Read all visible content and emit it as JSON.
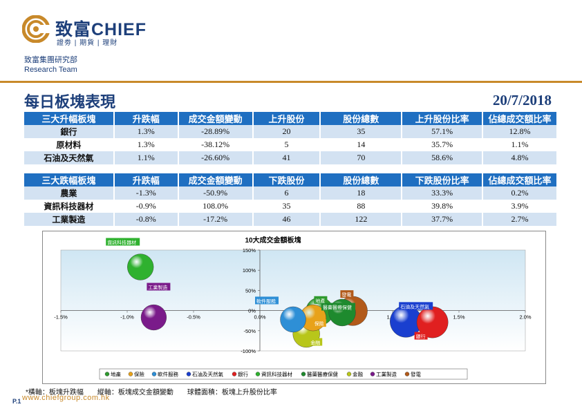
{
  "header": {
    "logo_name": "致富CHIEF",
    "logo_tagline": "證劵 | 期貨 | 理財",
    "dept_cn": "致富集團研究部",
    "dept_en": "Research Team"
  },
  "report": {
    "title": "每日板塊表現",
    "date": "20/7/2018"
  },
  "colors": {
    "brand_navy": "#1d3f7a",
    "accent_gold": "#c8892a",
    "table_header": "#1f6fc1",
    "row_band": "#d3e2f2"
  },
  "top_gainers": {
    "headers": [
      "三大升幅板塊",
      "升跌幅",
      "成交金額變動",
      "上升股份",
      "股份總數",
      "上升股份比率",
      "佔總成交額比率"
    ],
    "rows": [
      [
        "銀行",
        "1.3%",
        "-28.89%",
        "20",
        "35",
        "57.1%",
        "12.8%"
      ],
      [
        "原材料",
        "1.3%",
        "-38.12%",
        "5",
        "14",
        "35.7%",
        "1.1%"
      ],
      [
        "石油及天然氣",
        "1.1%",
        "-26.60%",
        "41",
        "70",
        "58.6%",
        "4.8%"
      ]
    ]
  },
  "top_losers": {
    "headers": [
      "三大跌幅板塊",
      "升跌幅",
      "成交金額變動",
      "下跌股份",
      "股份總數",
      "下跌股份比率",
      "佔總成交額比率"
    ],
    "rows": [
      [
        "農業",
        "-1.3%",
        "-50.9%",
        "6",
        "18",
        "33.3%",
        "0.2%"
      ],
      [
        "資訊科技器材",
        "-0.9%",
        "108.0%",
        "35",
        "88",
        "39.8%",
        "3.9%"
      ],
      [
        "工業製造",
        "-0.8%",
        "-17.2%",
        "46",
        "122",
        "37.7%",
        "2.7%"
      ]
    ]
  },
  "chart_data": {
    "type": "scatter",
    "title": "10大成交金額板塊",
    "xlim": [
      -1.5,
      2.0
    ],
    "ylim": [
      -100,
      150
    ],
    "x_ticks": [
      "-1.5%",
      "-1.0%",
      "-0.5%",
      "0.0%",
      "0.5%",
      "1.0%",
      "1.5%",
      "2.0%"
    ],
    "y_ticks": [
      "150%",
      "100%",
      "50%",
      "0%",
      "-50%",
      "-100%"
    ],
    "series": [
      {
        "name": "地產",
        "x": 0.45,
        "y": -2,
        "size": 45,
        "color": "#2f9a2f"
      },
      {
        "name": "保險",
        "x": 0.4,
        "y": -18,
        "size": 40,
        "color": "#e8a21a"
      },
      {
        "name": "軟件服務",
        "x": 0.25,
        "y": -22,
        "size": 38,
        "color": "#2e8fd6"
      },
      {
        "name": "石油及天然氣",
        "x": 1.1,
        "y": -27,
        "size": 58.6,
        "color": "#1a3fcf"
      },
      {
        "name": "銀行",
        "x": 1.3,
        "y": -29,
        "size": 57.1,
        "color": "#e02020"
      },
      {
        "name": "資訊科技器材",
        "x": -0.9,
        "y": 108,
        "size": 39.8,
        "color": "#2fb12f"
      },
      {
        "name": "醫藥醫療保健",
        "x": 0.62,
        "y": -5,
        "size": 42,
        "color": "#1e8a2e"
      },
      {
        "name": "金融",
        "x": 0.35,
        "y": -58,
        "size": 42,
        "color": "#b8c61a"
      },
      {
        "name": "工業製造",
        "x": -0.8,
        "y": -17,
        "size": 37.7,
        "color": "#7a1b8a"
      },
      {
        "name": "發電",
        "x": 0.7,
        "y": -1,
        "size": 50,
        "color": "#b25a1a"
      }
    ],
    "legend_position": "bottom"
  },
  "footer": {
    "note": "*橫軸：板塊升跌幅　　縱軸：板塊成交金額變動　　球體面積：板塊上升股份比率",
    "website": "www.chiefgroup.com.hk",
    "page": "P.1"
  }
}
